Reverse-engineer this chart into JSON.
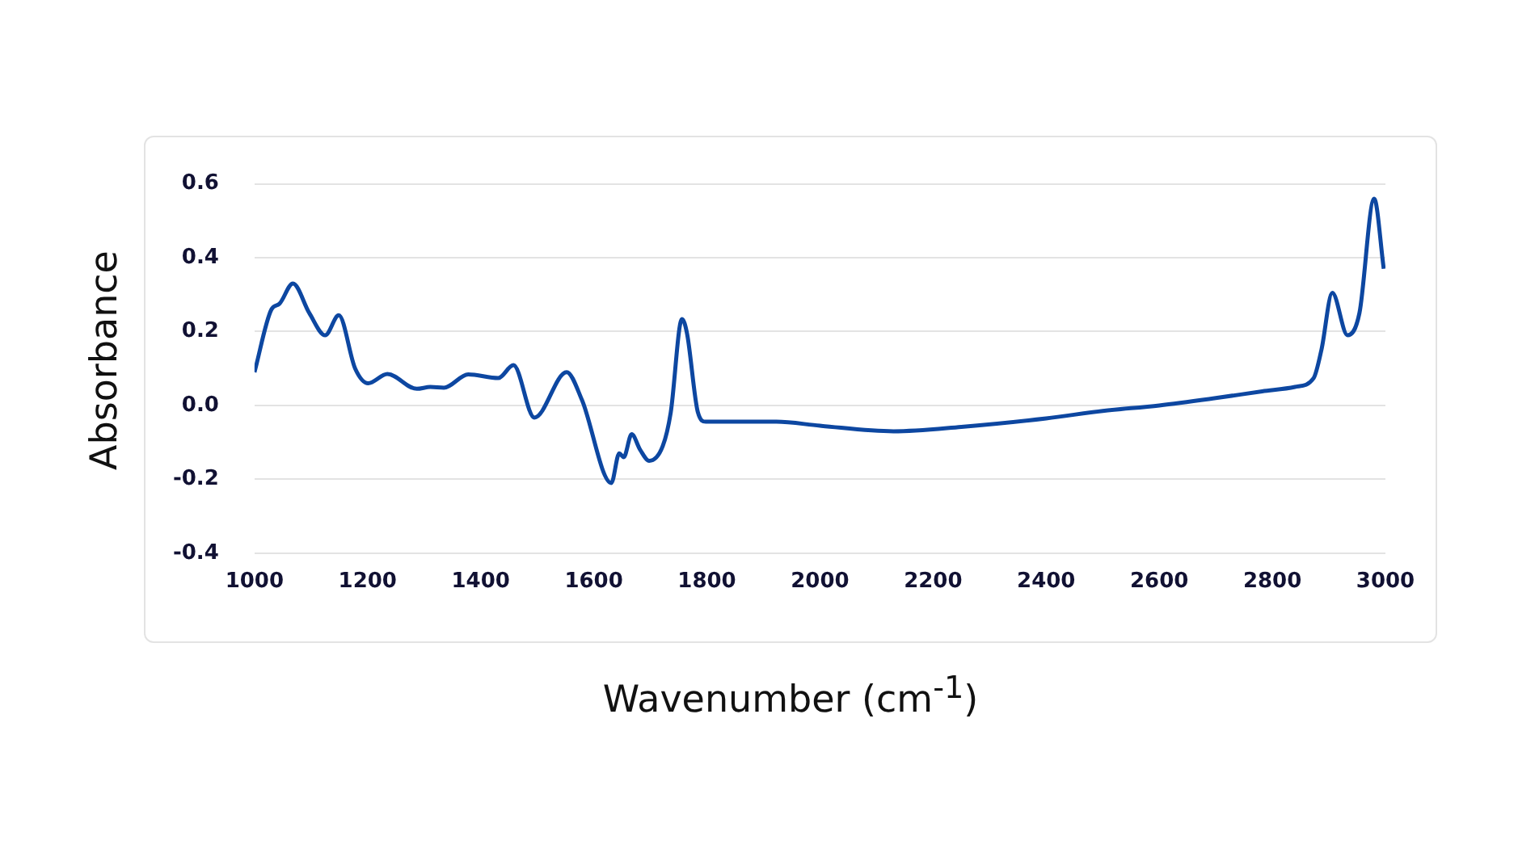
{
  "chart_data": {
    "type": "line",
    "xlabel": "Wavenumber (cm$^{-1}$)",
    "ylabel": "Absorbance",
    "x": [
      1000,
      1030,
      1044,
      1068,
      1097,
      1125,
      1149,
      1178,
      1201,
      1235,
      1287,
      1311,
      1335,
      1378,
      1431,
      1458,
      1495,
      1552,
      1579,
      1631,
      1645,
      1653,
      1667,
      1682,
      1698,
      1722,
      1736,
      1756,
      1765,
      1784,
      1798,
      1923,
      2000,
      2130,
      2250,
      2400,
      2500,
      2600,
      2700,
      2782,
      2840,
      2873,
      2887,
      2906,
      2933,
      2954,
      2980,
      2997
    ],
    "series": [
      {
        "color": "#0d47a1",
        "values": [
          0.09,
          0.26,
          0.275,
          0.33,
          0.25,
          0.19,
          0.244,
          0.1,
          0.06,
          0.085,
          0.045,
          0.05,
          0.048,
          0.084,
          0.074,
          0.109,
          -0.033,
          0.09,
          0.015,
          -0.21,
          -0.13,
          -0.14,
          -0.078,
          -0.12,
          -0.15,
          -0.11,
          -0.02,
          0.234,
          0.194,
          -0.018,
          -0.044,
          -0.044,
          -0.055,
          -0.07,
          -0.058,
          -0.035,
          -0.015,
          0.0,
          0.02,
          0.038,
          0.05,
          0.074,
          0.152,
          0.305,
          0.19,
          0.25,
          0.56,
          0.37
        ]
      }
    ],
    "xlim": [
      1000,
      3000
    ],
    "xticks": [
      1000,
      1200,
      1400,
      1600,
      1800,
      2000,
      2200,
      2400,
      2600,
      2800,
      3000
    ],
    "ylim": [
      -0.4,
      0.6
    ],
    "yticks": [
      {
        "value": -0.4,
        "label": "-0.4"
      },
      {
        "value": -0.2,
        "label": "-0.2"
      },
      {
        "value": 0,
        "label": "0.0"
      },
      {
        "value": 0.2,
        "label": "0.2"
      },
      {
        "value": 0.4,
        "label": "0.4"
      },
      {
        "value": 0.6,
        "label": "0.6"
      }
    ],
    "grid": "y",
    "legend": false,
    "marker": "none",
    "line_style": "solid"
  }
}
